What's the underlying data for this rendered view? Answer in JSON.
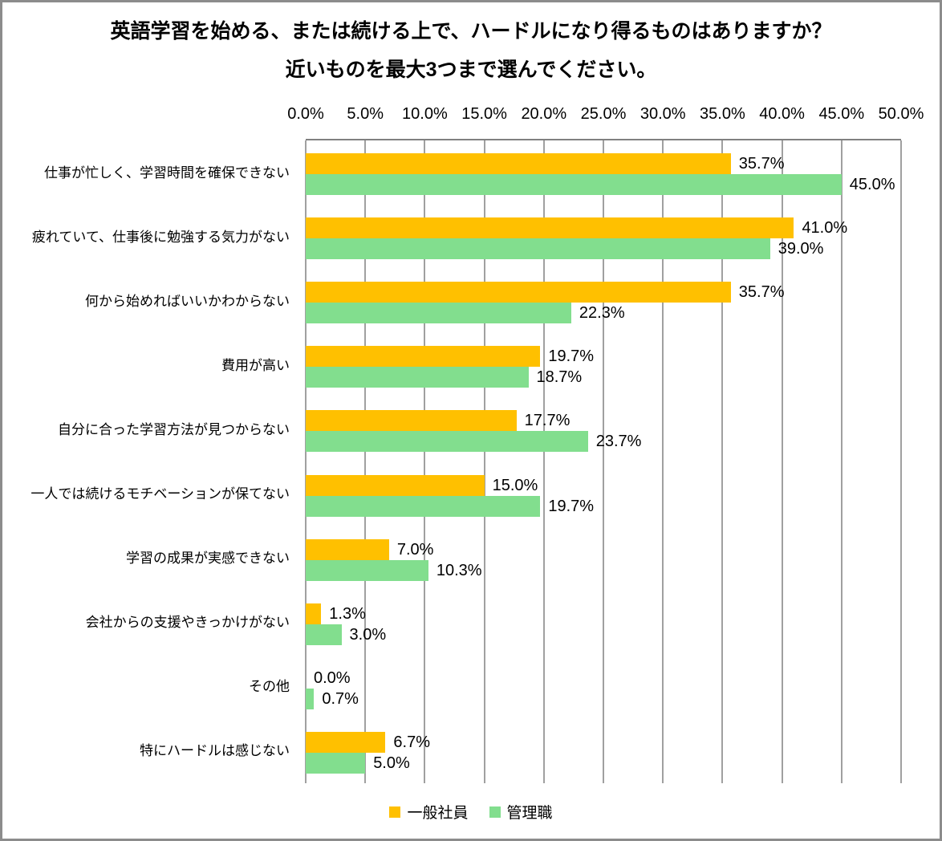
{
  "title": {
    "line1": "英語学習を始める、または続ける上で、ハードルになり得るものはありますか？",
    "line2": "近いものを最大3つまで選んでください。"
  },
  "colors": {
    "series_general": "#FFC000",
    "series_manager": "#82DE8E",
    "gridline": "#A0A0A0",
    "axis_line": "#808080",
    "outer_border": "#8C8C8C"
  },
  "chart_data": {
    "type": "bar",
    "orientation": "horizontal",
    "title": "英語学習を始める、または続ける上で、ハードルになり得るものはありますか？ 近いものを最大3つまで選んでください。",
    "categories": [
      "仕事が忙しく、学習時間を確保できない",
      "疲れていて、仕事後に勉強する気力がない",
      "何から始めればいいかわからない",
      "費用が高い",
      "自分に合った学習方法が見つからない",
      "一人では続けるモチベーションが保てない",
      "学習の成果が実感できない",
      "会社からの支援やきっかけがない",
      "その他",
      "特にハードルは感じない"
    ],
    "series": [
      {
        "name": "一般社員",
        "color": "#FFC000",
        "values": [
          35.7,
          41.0,
          35.7,
          19.7,
          17.7,
          15.0,
          7.0,
          1.3,
          0.0,
          6.7
        ]
      },
      {
        "name": "管理職",
        "color": "#82DE8E",
        "values": [
          45.0,
          39.0,
          22.3,
          18.7,
          23.7,
          19.7,
          10.3,
          3.0,
          0.7,
          5.0
        ]
      }
    ],
    "xlim": [
      0,
      50
    ],
    "tick_values": [
      0,
      5,
      10,
      15,
      20,
      25,
      30,
      35,
      40,
      45,
      50
    ],
    "tick_labels": [
      "0.0%",
      "5.0%",
      "10.0%",
      "15.0%",
      "20.0%",
      "25.0%",
      "30.0%",
      "35.0%",
      "40.0%",
      "45.0%",
      "50.0%"
    ],
    "value_suffix": "%",
    "grid": true,
    "legend_position": "bottom"
  }
}
